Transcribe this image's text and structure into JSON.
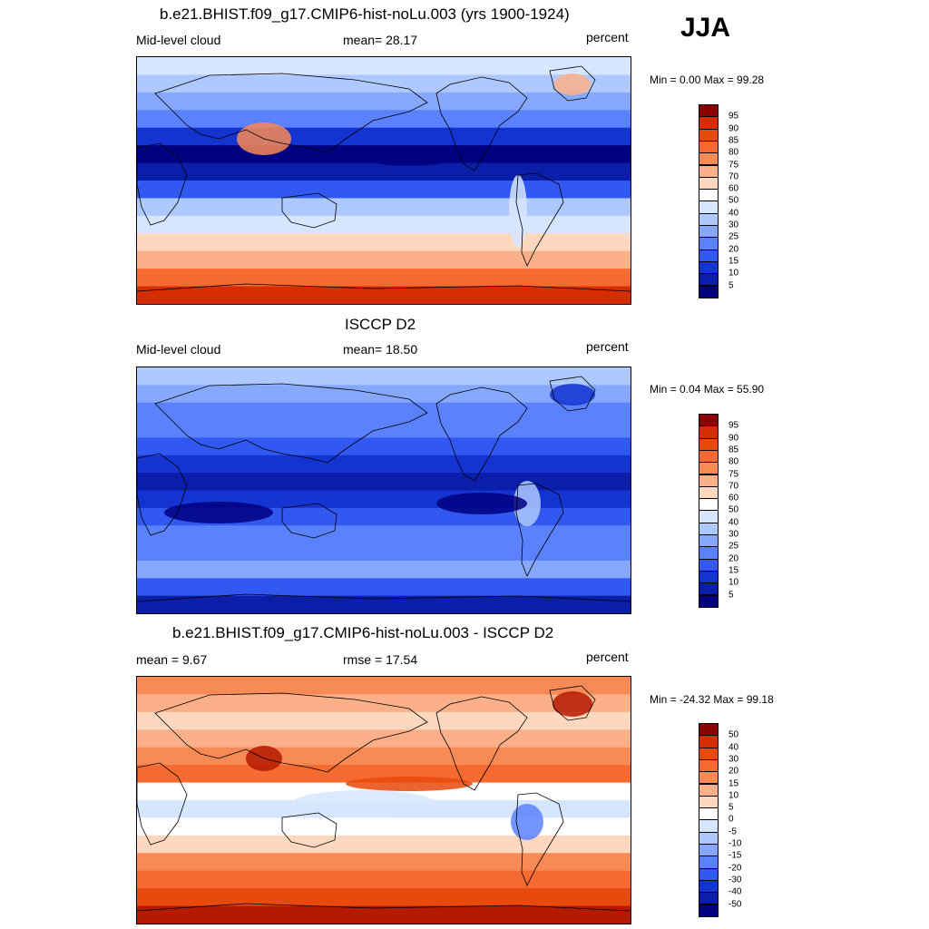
{
  "season": "JJA",
  "panels": [
    {
      "title": "b.e21.BHIST.f09_g17.CMIP6-hist-noLu.003 (yrs 1900-1924)",
      "left_label": "Mid-level cloud",
      "center_label": "mean=  28.17",
      "right_label": "percent",
      "minmax": "Min =   0.00 Max =  99.28",
      "colorbar": {
        "labels": [
          "95",
          "90",
          "85",
          "80",
          "75",
          "70",
          "60",
          "50",
          "40",
          "30",
          "25",
          "20",
          "15",
          "10",
          "5"
        ],
        "colors": [
          "#8b0000",
          "#b41a00",
          "#d52c00",
          "#e8490c",
          "#f46a30",
          "#f88a55",
          "#fbb08a",
          "#fdd8bf",
          "#ffffff",
          "#d6e6ff",
          "#aec9ff",
          "#86a9ff",
          "#5a82ff",
          "#3158f0",
          "#1434d2",
          "#0a1eaa",
          "#000080"
        ]
      },
      "kind": "model"
    },
    {
      "title": "ISCCP D2",
      "left_label": "Mid-level cloud",
      "center_label": "mean=  18.50",
      "right_label": "percent",
      "minmax": "Min =   0.04 Max =  55.90",
      "colorbar": {
        "labels": [
          "95",
          "90",
          "85",
          "80",
          "75",
          "70",
          "60",
          "50",
          "40",
          "30",
          "25",
          "20",
          "15",
          "10",
          "5"
        ],
        "colors": [
          "#8b0000",
          "#b41a00",
          "#d52c00",
          "#e8490c",
          "#f46a30",
          "#f88a55",
          "#fbb08a",
          "#fdd8bf",
          "#ffffff",
          "#d6e6ff",
          "#aec9ff",
          "#86a9ff",
          "#5a82ff",
          "#3158f0",
          "#1434d2",
          "#0a1eaa",
          "#000080"
        ]
      },
      "kind": "obs"
    },
    {
      "title": "b.e21.BHIST.f09_g17.CMIP6-hist-noLu.003 - ISCCP D2",
      "left_label": "mean =   9.67",
      "center_label": "rmse =  17.54",
      "right_label": "percent",
      "minmax": "Min = -24.32 Max =  99.18",
      "colorbar": {
        "labels": [
          "50",
          "40",
          "30",
          "20",
          "15",
          "10",
          "5",
          "0",
          "-5",
          "-10",
          "-15",
          "-20",
          "-30",
          "-40",
          "-50"
        ],
        "colors": [
          "#8b0000",
          "#b41a00",
          "#d52c00",
          "#e8490c",
          "#f46a30",
          "#f88a55",
          "#fbb08a",
          "#fdd8bf",
          "#ffffff",
          "#d6e6ff",
          "#aec9ff",
          "#86a9ff",
          "#5a82ff",
          "#3158f0",
          "#1434d2",
          "#0a1eaa",
          "#000080"
        ]
      },
      "kind": "diff"
    }
  ]
}
